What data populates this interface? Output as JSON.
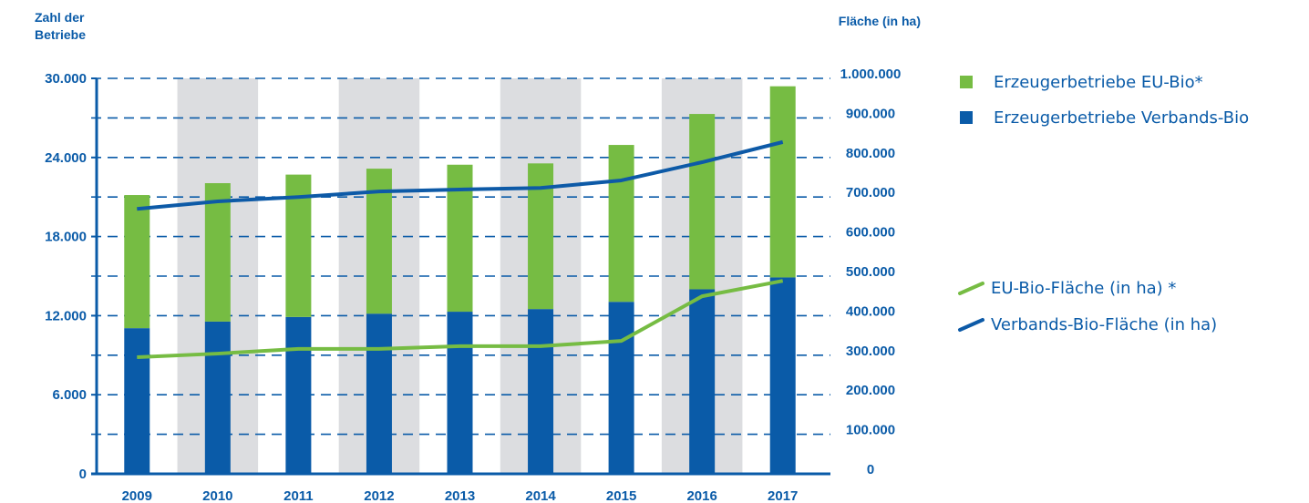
{
  "chart_data": {
    "type": "bar",
    "stacked": true,
    "y_axis_title": "Zahl der Betriebe",
    "y2_axis_title": "Fläche (in ha)",
    "categories": [
      "2009",
      "2010",
      "2011",
      "2012",
      "2013",
      "2014",
      "2015",
      "2016",
      "2017"
    ],
    "series": [
      {
        "name": "Erzeugerbetriebe EU-Bio*",
        "type": "bar",
        "color": "#76bc43",
        "values": [
          10100,
          10500,
          10800,
          11000,
          11150,
          11050,
          11900,
          13300,
          14500
        ]
      },
      {
        "name": "Erzeugerbetriebe Verbands-Bio",
        "type": "bar",
        "color": "#0a5ba8",
        "values": [
          11050,
          11550,
          11900,
          12150,
          12300,
          12500,
          13050,
          14000,
          14900
        ]
      },
      {
        "name": "EU-Bio-Fläche (in ha) *",
        "type": "line",
        "axis": "y2",
        "color": "#76bc43",
        "values": [
          295000,
          304000,
          316000,
          316000,
          323000,
          323000,
          336000,
          449000,
          488000
        ]
      },
      {
        "name": "Verbands-Bio-Fläche (in ha)",
        "type": "line",
        "axis": "y2",
        "color": "#0d5aa7",
        "values": [
          670000,
          689000,
          700000,
          714000,
          719000,
          723000,
          742000,
          788000,
          839000
        ]
      }
    ],
    "ylim": [
      0,
      30000
    ],
    "yticks": [
      0,
      {
        "value": 6000,
        "label": "6.000"
      },
      {
        "value": 12000,
        "label": "12.000"
      },
      {
        "value": 18000,
        "label": "18.000"
      },
      {
        "value": 24000,
        "label": "24.000"
      },
      {
        "value": 30000,
        "label": "30.000"
      }
    ],
    "y2lim": [
      0,
      1000000
    ],
    "y2ticks": [
      0,
      {
        "value": 100000,
        "label": "100.000"
      },
      {
        "value": 200000,
        "label": "200.000"
      },
      {
        "value": 300000,
        "label": "300.000"
      },
      {
        "value": 400000,
        "label": "400.000"
      },
      {
        "value": 500000,
        "label": "500.000"
      },
      {
        "value": 600000,
        "label": "600.000"
      },
      {
        "value": 700000,
        "label": "700.000"
      },
      {
        "value": 800000,
        "label": "800.000"
      },
      {
        "value": 900000,
        "label": "900.000"
      },
      {
        "value": 1000000,
        "label": "1.000.000"
      }
    ],
    "grid": true,
    "legend": "right"
  }
}
